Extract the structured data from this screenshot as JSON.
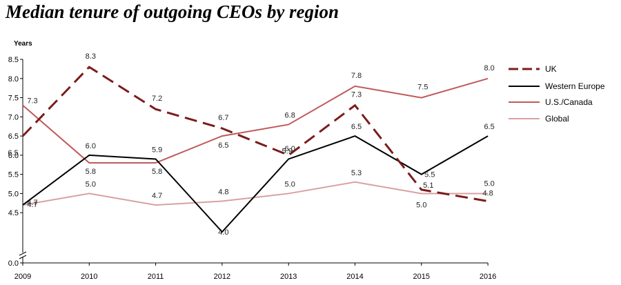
{
  "chart_data": {
    "type": "line",
    "title": "Median tenure of outgoing CEOs by region",
    "ylabel": "Years",
    "xlabel": "",
    "x": [
      "2009",
      "2010",
      "2011",
      "2012",
      "2013",
      "2014",
      "2015",
      "2016"
    ],
    "y_ticks": [
      "0.0",
      "4.5",
      "5.0",
      "5.5",
      "6.0",
      "6.5",
      "7.0",
      "7.5",
      "8.0",
      "8.5"
    ],
    "ylim": [
      4.0,
      8.5
    ],
    "axis_break": true,
    "legend_position": "right",
    "series": [
      {
        "name": "UK",
        "color": "#7b1c1c",
        "style": "dashed",
        "values": [
          6.5,
          8.3,
          7.2,
          6.7,
          6.0,
          7.3,
          5.1,
          4.8
        ],
        "labels": [
          "6.5",
          "8.3",
          "7.2",
          "6.7",
          "6.0",
          "7.3",
          "5.1",
          "4.8"
        ]
      },
      {
        "name": "Western Europe",
        "color": "#000000",
        "style": "solid",
        "values": [
          4.7,
          6.0,
          5.9,
          4.0,
          5.9,
          6.5,
          5.5,
          6.5
        ],
        "labels": [
          "4.7",
          "6.0",
          "5.9",
          "4.0",
          "5.9",
          "6.5",
          "5.5",
          "6.5"
        ]
      },
      {
        "name": "U.S./Canada",
        "color": "#c0595a",
        "style": "solid",
        "values": [
          7.3,
          5.8,
          5.8,
          6.5,
          6.8,
          7.8,
          7.5,
          8.0
        ],
        "labels": [
          "7.3",
          "5.8",
          "5.8",
          "6.5",
          "6.8",
          "7.8",
          "7.5",
          "8.0"
        ]
      },
      {
        "name": "Global",
        "color": "#d9a0a0",
        "style": "solid",
        "values": [
          4.7,
          5.0,
          4.7,
          4.8,
          5.0,
          5.3,
          5.0,
          5.0
        ],
        "labels": [
          "4.7",
          "5.0",
          "4.7",
          "4.8",
          "5.0",
          "5.3",
          "5.0",
          "5.0"
        ]
      }
    ]
  }
}
